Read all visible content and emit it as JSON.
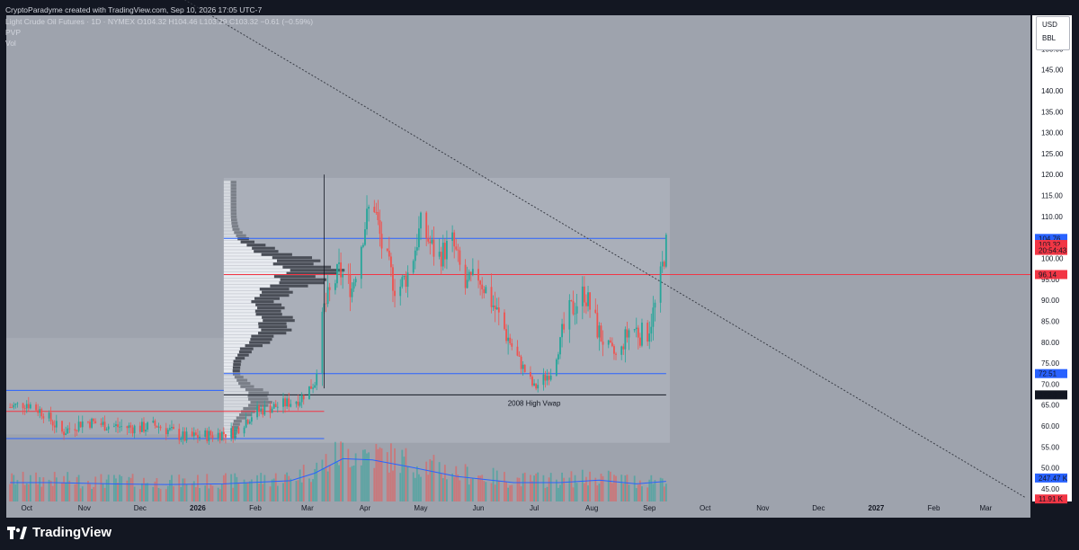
{
  "header": {
    "credit": "CryptoParadyme created with TradingView.com, Sep 10, 2026 17:05 UTC-7",
    "symbol_line": "Light Crude Oil Futures · 1D · NYMEX  O104.32  H104.46  L103.29  C103.32  −0.61 (−0.59%)",
    "indicator_1": "PVP",
    "indicator_2": "Vol"
  },
  "axis_box": {
    "currency": "USD",
    "unit": "BBL"
  },
  "brand": {
    "name": "TradingView",
    "icon": "tradingview-logo-icon"
  },
  "colors": {
    "background": "#9ea3ad",
    "up": "#26a69a",
    "down": "#ef5350",
    "blue_line": "#2962ff",
    "red_line": "#f23645",
    "vwap_line": "#131722",
    "volume_ma": "#2962ff"
  },
  "chart_data": {
    "type": "candlestick",
    "symbol": "Light Crude Oil Futures",
    "interval": "1D",
    "exchange": "NYMEX",
    "last": {
      "open": 104.32,
      "high": 104.46,
      "low": 103.29,
      "close": 103.32,
      "change": -0.61,
      "change_pct": -0.59
    },
    "y_axis": {
      "ticks": [
        "150.00",
        "145.00",
        "140.00",
        "135.00",
        "130.00",
        "125.00",
        "120.00",
        "115.00",
        "110.00",
        "105.00",
        "100.00",
        "95.00",
        "90.00",
        "85.00",
        "80.00",
        "75.00",
        "70.00",
        "65.00",
        "60.00",
        "55.00",
        "50.00",
        "45.00"
      ],
      "range": [
        42,
        158
      ]
    },
    "x_axis": {
      "labels": [
        "Oct",
        "Nov",
        "Dec",
        "2026",
        "Feb",
        "Mar",
        "Apr",
        "May",
        "Jun",
        "Jul",
        "Aug",
        "Sep",
        "Oct",
        "Nov",
        "Dec",
        "2027",
        "Feb",
        "Mar"
      ],
      "range": [
        "2025-09-20",
        "2027-03-25"
      ],
      "bold_labels": [
        "2026",
        "2027"
      ]
    },
    "price_tags": [
      {
        "value": 104.76,
        "label": "104.76",
        "color": "#2962ff"
      },
      {
        "value": 103.32,
        "label": "103.32",
        "color": "#f23645"
      },
      {
        "value": 101.9,
        "label": "20:54:43",
        "color": "#f23645"
      },
      {
        "value": 96.14,
        "label": "96.14",
        "color": "#f23645"
      },
      {
        "value": 72.51,
        "label": "72.51",
        "color": "#2962ff"
      },
      {
        "value": 67.43,
        "label": "67.43",
        "color": "#131722"
      },
      {
        "value": 47.6,
        "label": "247.47 K",
        "color": "#2962ff"
      },
      {
        "value": 42.6,
        "label": "11.91 K",
        "color": "#f23645"
      }
    ],
    "horizontal_levels": [
      {
        "name": "value-area-high",
        "value": 104.76,
        "color": "#2962ff",
        "from": "2026-01-15",
        "to": "2026-09-10"
      },
      {
        "name": "point-of-control",
        "value": 96.14,
        "color": "#f23645",
        "from": "2026-01-15",
        "to": "2027-03-25"
      },
      {
        "name": "value-area-low",
        "value": 72.51,
        "color": "#2962ff",
        "from": "2026-01-15",
        "to": "2026-09-10"
      },
      {
        "name": "2008-high-vwap",
        "value": 67.43,
        "color": "#131722",
        "from": "2026-01-15",
        "to": "2026-09-10"
      }
    ],
    "annotation": {
      "text": "2008 High Vwap",
      "date": "2026-07-01",
      "value": 64.8
    },
    "trendline": {
      "from": {
        "date": "2025-10-01",
        "value": 184
      },
      "to": {
        "date": "2027-03-22",
        "value": 43
      }
    },
    "ohlc_path": [
      [
        "2025-09-22",
        64.5
      ],
      [
        "2025-10-01",
        65.5
      ],
      [
        "2025-10-10",
        63.2
      ],
      [
        "2025-10-20",
        58.5
      ],
      [
        "2025-11-01",
        61.2
      ],
      [
        "2025-11-15",
        60.0
      ],
      [
        "2025-12-01",
        59.5
      ],
      [
        "2025-12-10",
        60.2
      ],
      [
        "2025-12-25",
        57.2
      ],
      [
        "2026-01-10",
        58.0
      ],
      [
        "2026-01-20",
        58.5
      ],
      [
        "2026-02-01",
        63.5
      ],
      [
        "2026-02-15",
        65.0
      ],
      [
        "2026-02-25",
        66.5
      ],
      [
        "2026-03-05",
        70.5
      ],
      [
        "2026-03-10",
        88.0
      ],
      [
        "2026-03-18",
        97.0
      ],
      [
        "2026-03-25",
        93.0
      ],
      [
        "2026-04-01",
        108.0
      ],
      [
        "2026-04-05",
        115.0
      ],
      [
        "2026-04-10",
        103.0
      ],
      [
        "2026-04-18",
        92.0
      ],
      [
        "2026-04-25",
        97.0
      ],
      [
        "2026-05-01",
        108.0
      ],
      [
        "2026-05-10",
        100.0
      ],
      [
        "2026-05-18",
        104.0
      ],
      [
        "2026-05-25",
        93.0
      ],
      [
        "2026-06-01",
        96.0
      ],
      [
        "2026-06-10",
        88.0
      ],
      [
        "2026-06-20",
        78.0
      ],
      [
        "2026-07-01",
        69.0
      ],
      [
        "2026-07-10",
        73.0
      ],
      [
        "2026-07-20",
        87.0
      ],
      [
        "2026-07-28",
        92.0
      ],
      [
        "2026-08-05",
        82.0
      ],
      [
        "2026-08-15",
        76.0
      ],
      [
        "2026-08-22",
        84.0
      ],
      [
        "2026-08-30",
        81.0
      ],
      [
        "2026-09-05",
        90.0
      ],
      [
        "2026-09-10",
        103.3
      ]
    ],
    "volume_ma_path": [
      [
        "2025-09-22",
        0.3
      ],
      [
        "2025-10-15",
        0.3
      ],
      [
        "2025-11-15",
        0.28
      ],
      [
        "2025-12-15",
        0.27
      ],
      [
        "2026-01-15",
        0.28
      ],
      [
        "2026-02-20",
        0.33
      ],
      [
        "2026-03-05",
        0.45
      ],
      [
        "2026-03-20",
        0.68
      ],
      [
        "2026-04-05",
        0.66
      ],
      [
        "2026-04-25",
        0.55
      ],
      [
        "2026-05-20",
        0.4
      ],
      [
        "2026-06-20",
        0.3
      ],
      [
        "2026-07-15",
        0.3
      ],
      [
        "2026-08-05",
        0.34
      ],
      [
        "2026-08-25",
        0.28
      ],
      [
        "2026-09-10",
        0.32
      ]
    ]
  }
}
